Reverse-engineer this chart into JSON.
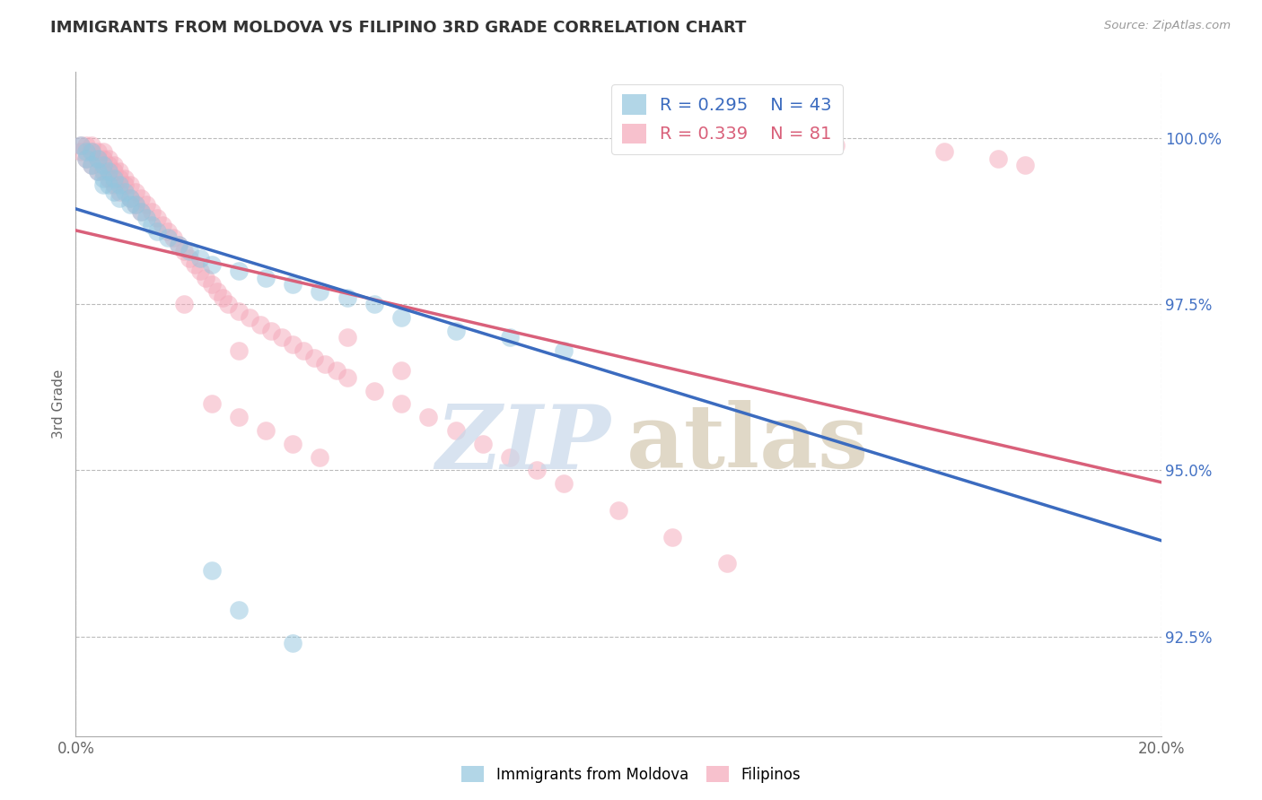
{
  "title": "IMMIGRANTS FROM MOLDOVA VS FILIPINO 3RD GRADE CORRELATION CHART",
  "source_text": "Source: ZipAtlas.com",
  "ylabel": "3rd Grade",
  "xlim": [
    0.0,
    0.2
  ],
  "ylim": [
    0.91,
    1.01
  ],
  "x_ticks": [
    0.0,
    0.2
  ],
  "x_tick_labels": [
    "0.0%",
    "20.0%"
  ],
  "y_ticks": [
    0.925,
    0.95,
    0.975,
    1.0
  ],
  "y_tick_labels": [
    "92.5%",
    "95.0%",
    "97.5%",
    "100.0%"
  ],
  "legend_entries": [
    {
      "label": "Immigrants from Moldova",
      "color": "#92c5de"
    },
    {
      "label": "Filipinos",
      "color": "#f4a7b9"
    }
  ],
  "r_moldova": 0.295,
  "n_moldova": 43,
  "r_filipino": 0.339,
  "n_filipino": 81,
  "moldova_color": "#92c5de",
  "filipino_color": "#f4a7b9",
  "moldova_line_color": "#3b6bbf",
  "filipino_line_color": "#d9607a",
  "watermark_zip_color": "#c8d8ea",
  "watermark_atlas_color": "#d4c8b0",
  "background_color": "#ffffff",
  "grid_color": "#bbbbbb",
  "moldova_x": [
    0.001,
    0.002,
    0.002,
    0.003,
    0.003,
    0.004,
    0.004,
    0.005,
    0.005,
    0.005,
    0.006,
    0.006,
    0.007,
    0.007,
    0.008,
    0.008,
    0.009,
    0.01,
    0.01,
    0.011,
    0.012,
    0.013,
    0.014,
    0.015,
    0.017,
    0.019,
    0.021,
    0.023,
    0.025,
    0.03,
    0.035,
    0.04,
    0.045,
    0.05,
    0.055,
    0.06,
    0.07,
    0.08,
    0.09,
    0.12,
    0.025,
    0.03,
    0.04
  ],
  "moldova_y": [
    0.999,
    0.998,
    0.997,
    0.998,
    0.996,
    0.997,
    0.995,
    0.996,
    0.994,
    0.993,
    0.995,
    0.993,
    0.994,
    0.992,
    0.993,
    0.991,
    0.992,
    0.991,
    0.99,
    0.99,
    0.989,
    0.988,
    0.987,
    0.986,
    0.985,
    0.984,
    0.983,
    0.982,
    0.981,
    0.98,
    0.979,
    0.978,
    0.977,
    0.976,
    0.975,
    0.973,
    0.971,
    0.97,
    0.968,
    0.999,
    0.935,
    0.929,
    0.924
  ],
  "filipino_x": [
    0.001,
    0.001,
    0.002,
    0.002,
    0.003,
    0.003,
    0.003,
    0.004,
    0.004,
    0.004,
    0.005,
    0.005,
    0.005,
    0.006,
    0.006,
    0.006,
    0.007,
    0.007,
    0.007,
    0.008,
    0.008,
    0.008,
    0.009,
    0.009,
    0.01,
    0.01,
    0.011,
    0.011,
    0.012,
    0.012,
    0.013,
    0.014,
    0.015,
    0.016,
    0.017,
    0.018,
    0.019,
    0.02,
    0.021,
    0.022,
    0.023,
    0.024,
    0.025,
    0.026,
    0.027,
    0.028,
    0.03,
    0.032,
    0.034,
    0.036,
    0.038,
    0.04,
    0.042,
    0.044,
    0.046,
    0.048,
    0.05,
    0.055,
    0.06,
    0.065,
    0.07,
    0.075,
    0.08,
    0.085,
    0.09,
    0.1,
    0.11,
    0.12,
    0.14,
    0.16,
    0.17,
    0.175,
    0.025,
    0.03,
    0.035,
    0.04,
    0.045,
    0.02,
    0.03,
    0.05,
    0.06
  ],
  "filipino_y": [
    0.999,
    0.998,
    0.999,
    0.997,
    0.999,
    0.998,
    0.996,
    0.998,
    0.997,
    0.995,
    0.998,
    0.997,
    0.995,
    0.997,
    0.996,
    0.994,
    0.996,
    0.995,
    0.993,
    0.995,
    0.994,
    0.992,
    0.994,
    0.993,
    0.993,
    0.991,
    0.992,
    0.99,
    0.991,
    0.989,
    0.99,
    0.989,
    0.988,
    0.987,
    0.986,
    0.985,
    0.984,
    0.983,
    0.982,
    0.981,
    0.98,
    0.979,
    0.978,
    0.977,
    0.976,
    0.975,
    0.974,
    0.973,
    0.972,
    0.971,
    0.97,
    0.969,
    0.968,
    0.967,
    0.966,
    0.965,
    0.964,
    0.962,
    0.96,
    0.958,
    0.956,
    0.954,
    0.952,
    0.95,
    0.948,
    0.944,
    0.94,
    0.936,
    0.999,
    0.998,
    0.997,
    0.996,
    0.96,
    0.958,
    0.956,
    0.954,
    0.952,
    0.975,
    0.968,
    0.97,
    0.965
  ]
}
